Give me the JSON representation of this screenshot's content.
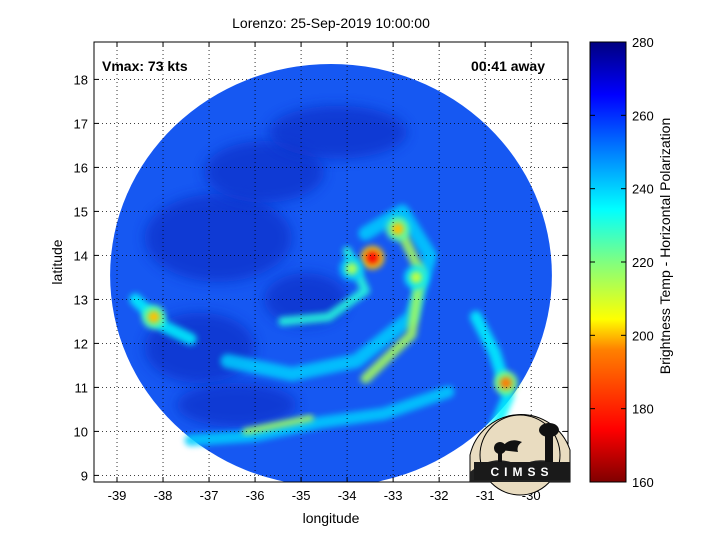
{
  "chart_data": {
    "type": "heatmap",
    "title": "Lorenzo: 25-Sep-2019 10:00:00",
    "xlabel": "longitude",
    "ylabel": "latitude",
    "xlim": [
      -39.5,
      -29.2
    ],
    "ylim": [
      8.85,
      18.85
    ],
    "xticks": [
      -39,
      -38,
      -37,
      -36,
      -35,
      -34,
      -33,
      -32,
      -31,
      -30
    ],
    "yticks": [
      9,
      10,
      11,
      12,
      13,
      14,
      15,
      16,
      17,
      18
    ],
    "grid": true,
    "annotations": {
      "vmax": "Vmax: 73 kts",
      "time_away": "00:41 away"
    },
    "colorbar": {
      "label": "Brightness Temp - Horizontal Polarization",
      "range": [
        160,
        280
      ],
      "ticks": [
        160,
        180,
        200,
        220,
        240,
        260,
        280
      ],
      "colors": [
        "#800000",
        "#ff0000",
        "#ff8000",
        "#ffff00",
        "#80ff80",
        "#00ffff",
        "#0080ff",
        "#0000ff",
        "#000080"
      ]
    },
    "swath": {
      "center_lon": -34.35,
      "center_lat": 13.55,
      "radius_deg": 4.8
    },
    "features": [
      {
        "lon": -33.45,
        "lat": 13.95,
        "tb": 175
      },
      {
        "lon": -32.9,
        "lat": 14.6,
        "tb": 200
      },
      {
        "lon": -33.9,
        "lat": 13.7,
        "tb": 215
      },
      {
        "lon": -32.5,
        "lat": 13.5,
        "tb": 212
      },
      {
        "lon": -38.2,
        "lat": 12.6,
        "tb": 200
      },
      {
        "lon": -30.55,
        "lat": 11.1,
        "tb": 195
      }
    ]
  },
  "logo": {
    "text": "CIMSS"
  }
}
